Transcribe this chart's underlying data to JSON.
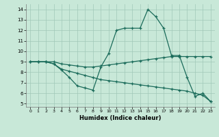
{
  "xlabel": "Humidex (Indice chaleur)",
  "bg_color": "#c8e8d8",
  "grid_color": "#a0c8b8",
  "line_color": "#1a6b5a",
  "xlim": [
    -0.5,
    23.5
  ],
  "ylim": [
    4.7,
    14.5
  ],
  "xticks": [
    0,
    1,
    2,
    3,
    4,
    5,
    6,
    7,
    8,
    9,
    10,
    11,
    12,
    13,
    14,
    15,
    16,
    17,
    18,
    19,
    20,
    21,
    22,
    23
  ],
  "yticks": [
    5,
    6,
    7,
    8,
    9,
    10,
    11,
    12,
    13,
    14
  ],
  "line1_x": [
    0,
    1,
    2,
    3,
    4,
    5,
    6,
    7,
    8,
    9,
    10,
    11,
    12,
    13,
    14,
    15,
    16,
    17,
    18,
    19,
    20,
    21,
    22,
    23
  ],
  "line1_y": [
    9.0,
    9.0,
    9.0,
    8.8,
    8.2,
    7.5,
    6.7,
    6.5,
    6.3,
    8.5,
    9.8,
    12.0,
    12.2,
    12.2,
    12.2,
    14.0,
    13.3,
    12.2,
    9.6,
    9.6,
    7.5,
    5.7,
    6.0,
    5.2
  ],
  "line2_x": [
    0,
    1,
    2,
    3,
    4,
    5,
    6,
    7,
    8,
    9,
    10,
    11,
    12,
    13,
    14,
    15,
    16,
    17,
    18,
    19,
    20,
    21,
    22,
    23
  ],
  "line2_y": [
    9.0,
    9.0,
    9.0,
    9.0,
    8.8,
    8.7,
    8.6,
    8.5,
    8.5,
    8.6,
    8.7,
    8.8,
    8.9,
    9.0,
    9.1,
    9.2,
    9.3,
    9.4,
    9.5,
    9.5,
    9.5,
    9.5,
    9.5,
    9.5
  ],
  "line3_x": [
    0,
    1,
    2,
    3,
    4,
    5,
    6,
    7,
    8,
    9,
    10,
    11,
    12,
    13,
    14,
    15,
    16,
    17,
    18,
    19,
    20,
    21,
    22,
    23
  ],
  "line3_y": [
    9.0,
    9.0,
    9.0,
    8.8,
    8.3,
    8.1,
    7.9,
    7.7,
    7.5,
    7.3,
    7.2,
    7.1,
    7.0,
    6.9,
    6.8,
    6.7,
    6.6,
    6.5,
    6.4,
    6.3,
    6.2,
    6.0,
    5.8,
    5.2
  ]
}
